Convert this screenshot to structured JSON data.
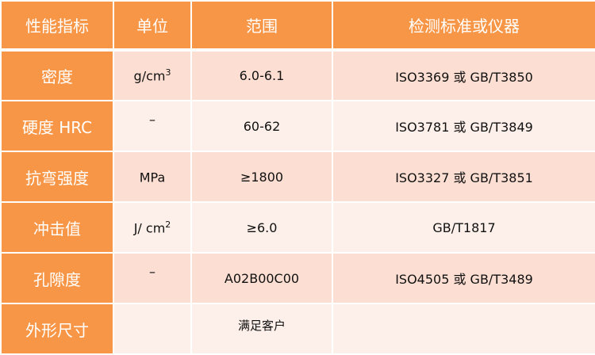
{
  "headers": [
    "性能指标",
    "单位",
    "范围",
    "检测标准或仪器"
  ],
  "rows": [
    {
      "name": "密度",
      "unit": "g/cm",
      "unit_sup": "3",
      "range": "6.0-6.1",
      "standard": "ISO3369 或 GB/T3850"
    },
    {
      "name": "硬度 HRC",
      "unit": "–",
      "unit_sup": "",
      "range": "60-62",
      "standard": "ISO3781 或 GB/T3849"
    },
    {
      "name": "抗弯强度",
      "unit": "MPa",
      "unit_sup": "",
      "range": "≥1800",
      "standard": "ISO3327 或 GB/T3851"
    },
    {
      "name": "冲击值",
      "unit": "J/ cm",
      "unit_sup": "2",
      "range": "≥6.0",
      "standard": "GB/T1817"
    },
    {
      "name": "孔隙度",
      "unit": "–",
      "unit_sup": "",
      "range": "A02B00C00",
      "standard": "ISO4505 或 GB/T3489"
    },
    {
      "name": "外形尺寸",
      "unit": "",
      "unit_sup": "",
      "range": "满足客户",
      "standard": ""
    }
  ],
  "colors": {
    "header": "#F79646",
    "row_odd": "#FCDED2",
    "row_even": "#FDEFE9"
  }
}
